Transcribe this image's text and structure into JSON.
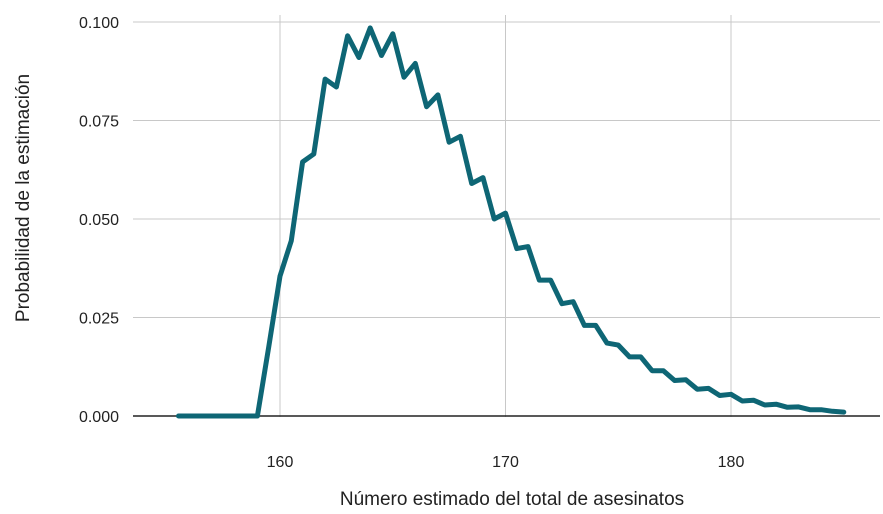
{
  "chart_data": {
    "type": "line",
    "xlabel": "Número estimado del total de asesinatos",
    "ylabel": "Probabilidad de la estimación",
    "xlim": [
      153,
      186
    ],
    "ylim": [
      0,
      0.1
    ],
    "x_ticks": [
      160,
      170,
      180
    ],
    "x_tick_labels": [
      "160",
      "170",
      "180"
    ],
    "y_ticks": [
      0,
      0.025,
      0.05,
      0.075,
      0.1
    ],
    "y_tick_labels": [
      "0.000",
      "0.025",
      "0.050",
      "0.075",
      "0.100"
    ],
    "grid": true,
    "series": [
      {
        "color": "#0e6675",
        "x": [
          155.5,
          156,
          156.5,
          157,
          157.5,
          158,
          158.5,
          159,
          159.5,
          160,
          160.5,
          161,
          161.5,
          162,
          162.5,
          163,
          163.5,
          164,
          164.5,
          165,
          165.5,
          166,
          166.5,
          167,
          167.5,
          168,
          168.5,
          169,
          169.5,
          170,
          170.5,
          171,
          171.5,
          172,
          172.5,
          173,
          173.5,
          174,
          174.5,
          175,
          175.5,
          176,
          176.5,
          177,
          177.5,
          178,
          178.5,
          179,
          179.5,
          180,
          180.5,
          181,
          181.5,
          182,
          182.5,
          183,
          183.5,
          184,
          184.5,
          185
        ],
        "y": [
          0,
          0,
          0,
          0,
          0,
          0,
          0,
          0,
          0.0175,
          0.0355,
          0.0445,
          0.0645,
          0.0665,
          0.0855,
          0.0835,
          0.0965,
          0.091,
          0.0985,
          0.0915,
          0.097,
          0.086,
          0.0895,
          0.0785,
          0.0815,
          0.0695,
          0.071,
          0.059,
          0.0605,
          0.05,
          0.0515,
          0.0425,
          0.043,
          0.0345,
          0.0345,
          0.0285,
          0.029,
          0.023,
          0.023,
          0.0185,
          0.018,
          0.015,
          0.015,
          0.0115,
          0.0115,
          0.009,
          0.0092,
          0.0068,
          0.007,
          0.0052,
          0.0055,
          0.0038,
          0.004,
          0.0028,
          0.003,
          0.0022,
          0.0023,
          0.0016,
          0.0016,
          0.0012,
          0.001
        ]
      }
    ]
  }
}
